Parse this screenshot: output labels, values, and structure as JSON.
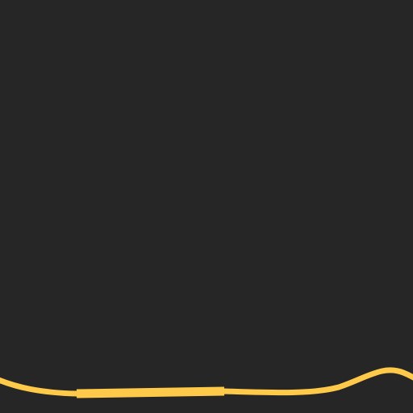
{
  "canvas": {
    "background_color": "#262626"
  },
  "wave": {
    "stroke_color": "#FFC94A",
    "highlight_color": "#FFC94A"
  }
}
